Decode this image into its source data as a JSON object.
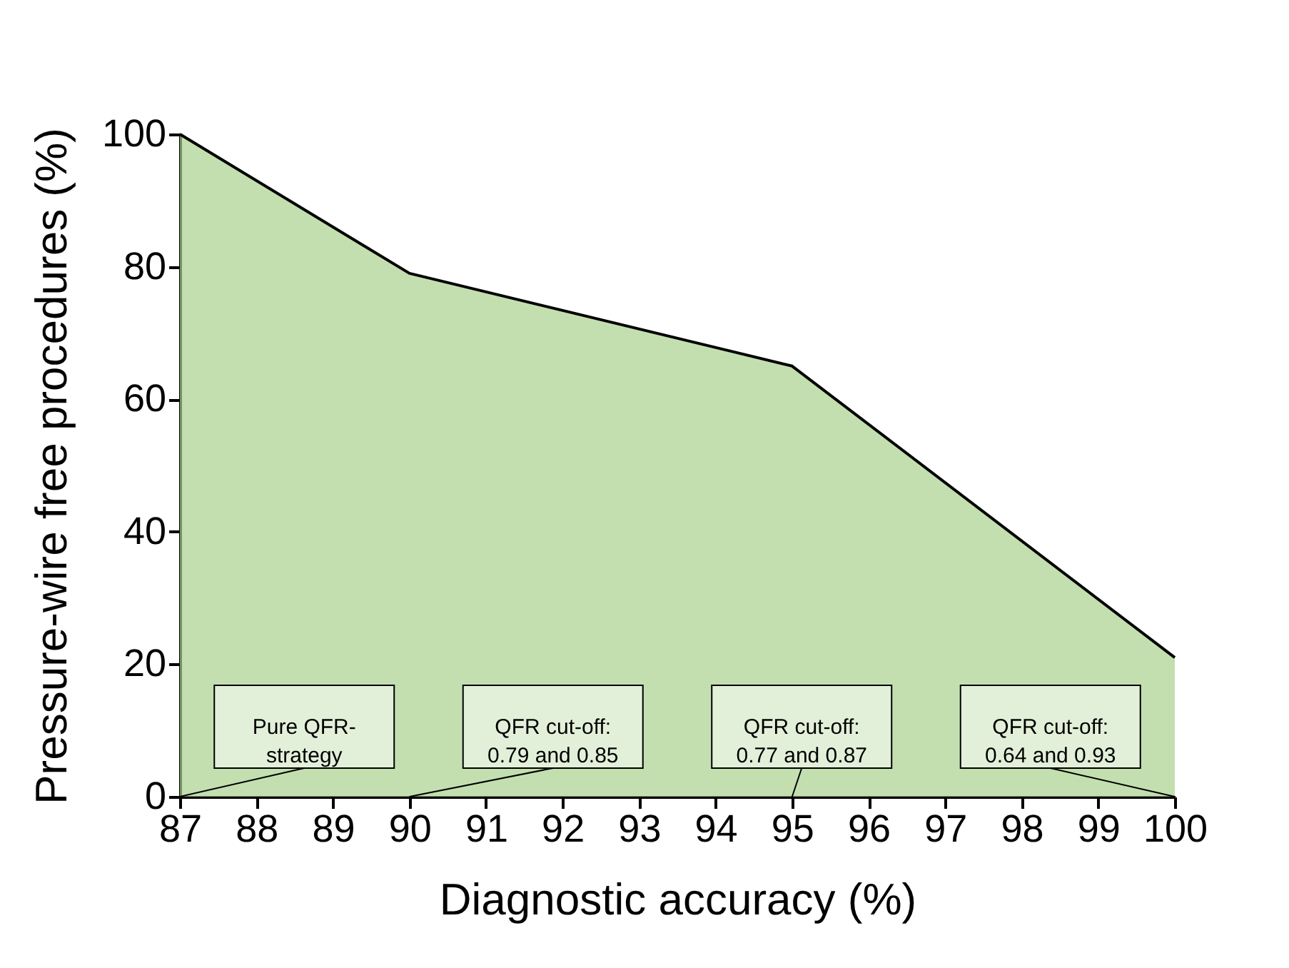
{
  "chart_data": {
    "type": "area",
    "x": [
      87,
      90,
      95,
      100
    ],
    "series": [
      {
        "color": "#a9d18e",
        "values": [
          100,
          79,
          65,
          21
        ]
      }
    ],
    "xlabel": "Diagnostic accuracy (%)",
    "ylabel": "Pressure-wire free procedures (%)",
    "xlim": [
      87,
      100
    ],
    "xticks": [
      87,
      88,
      89,
      90,
      91,
      92,
      93,
      94,
      95,
      96,
      97,
      98,
      99,
      100
    ],
    "ylim": [
      0,
      100
    ],
    "yticks": [
      0,
      20,
      40,
      60,
      80,
      100
    ],
    "annotations": [
      {
        "text": "Pure QFR-\nstrategy",
        "x": 87,
        "y": 0
      },
      {
        "text": "QFR cut-off:\n0.79 and 0.85",
        "x": 90,
        "y": 0
      },
      {
        "text": "QFR cut-off:\n0.77 and 0.87",
        "x": 95,
        "y": 0
      },
      {
        "text": "QFR cut-off:\n0.64 and 0.93",
        "x": 100,
        "y": 0
      }
    ]
  }
}
